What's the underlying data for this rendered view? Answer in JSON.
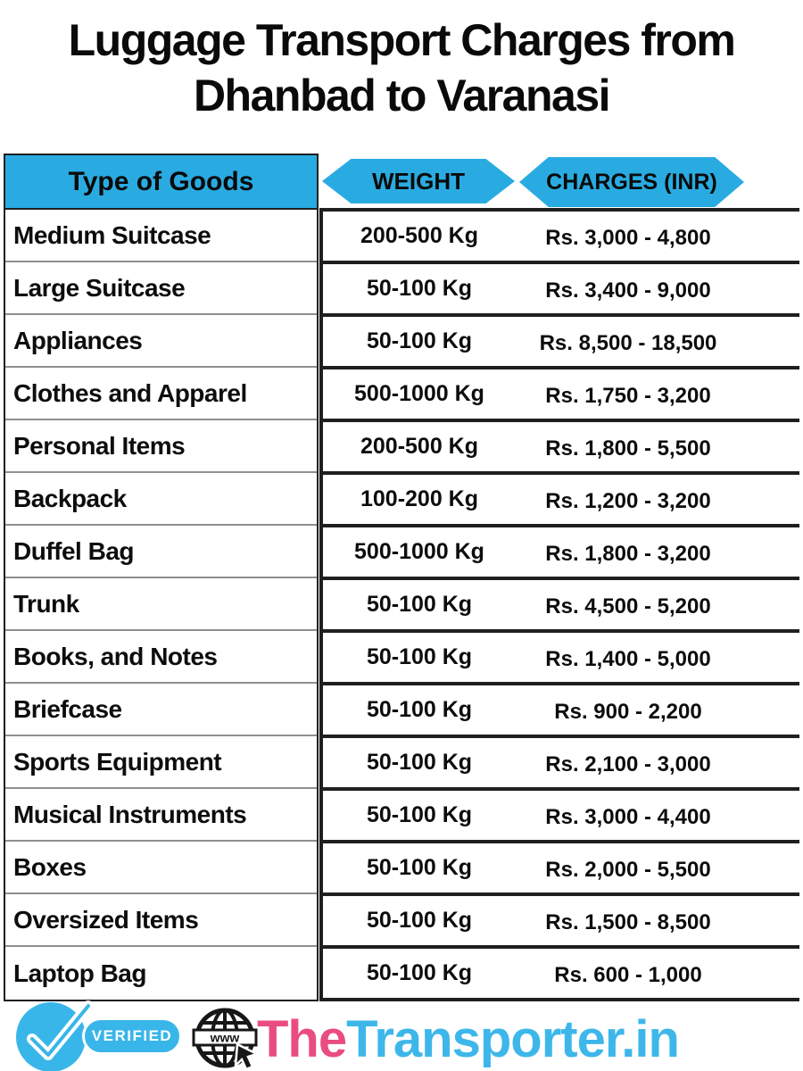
{
  "title": {
    "line1": "Luggage Transport Charges from",
    "line2": "Dhanbad to Varanasi"
  },
  "chart_data": {
    "type": "table",
    "title": "Luggage Transport Charges from Dhanbad to Varanasi",
    "columns": [
      "Type of Goods",
      "WEIGHT",
      "CHARGES (INR)"
    ],
    "rows": [
      [
        "Medium Suitcase",
        "200-500 Kg",
        "Rs. 3,000 - 4,800"
      ],
      [
        "Large Suitcase",
        "50-100 Kg",
        "Rs. 3,400 - 9,000"
      ],
      [
        "Appliances",
        "50-100 Kg",
        "Rs. 8,500 - 18,500"
      ],
      [
        "Clothes and Apparel",
        "500-1000 Kg",
        "Rs. 1,750 - 3,200"
      ],
      [
        "Personal Items",
        "200-500 Kg",
        "Rs. 1,800 - 5,500"
      ],
      [
        "Backpack",
        "100-200 Kg",
        "Rs. 1,200 - 3,200"
      ],
      [
        "Duffel Bag",
        "500-1000 Kg",
        "Rs. 1,800 - 3,200"
      ],
      [
        "Trunk",
        "50-100 Kg",
        "Rs. 4,500 - 5,200"
      ],
      [
        "Books, and Notes",
        "50-100 Kg",
        "Rs. 1,400 - 5,000"
      ],
      [
        "Briefcase",
        "50-100 Kg",
        "Rs. 900 - 2,200"
      ],
      [
        "Sports Equipment",
        "50-100 Kg",
        "Rs. 2,100 - 3,000"
      ],
      [
        "Musical Instruments",
        "50-100 Kg",
        "Rs. 3,000 - 4,400"
      ],
      [
        "Boxes",
        "50-100 Kg",
        "Rs. 2,000 - 5,500"
      ],
      [
        "Oversized Items",
        "50-100 Kg",
        "Rs. 1,500 - 8,500"
      ],
      [
        "Laptop Bag",
        "50-100 Kg",
        "Rs. 600 - 1,000"
      ]
    ]
  },
  "footer": {
    "verified_label": "VERIFIED",
    "globe_label": "www",
    "brand_part1": "The",
    "brand_part2": "Transporter.in"
  },
  "colors": {
    "table_header_blue": "#29ABE2",
    "badge_blue": "#38B6E9",
    "brand_pink": "#E94D80",
    "brand_blue": "#3DB7EA",
    "line_black": "#1f1f1f",
    "separator_gray": "#8f8f8f"
  }
}
